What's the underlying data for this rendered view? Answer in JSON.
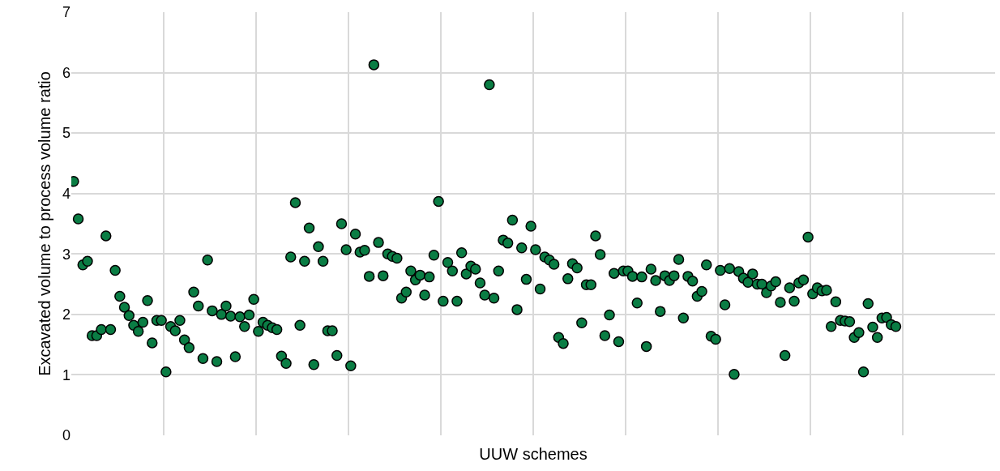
{
  "chart_data": {
    "type": "scatter",
    "xlabel": "UUW schemes",
    "ylabel": "Excavated volume to process volume ratio",
    "categories": [
      null,
      null,
      null,
      null,
      null,
      null,
      null,
      null,
      null,
      null,
      null,
      null,
      null,
      null,
      null,
      null,
      null,
      null,
      null,
      null,
      null,
      null,
      null,
      null,
      null,
      null,
      null,
      null,
      null,
      null,
      null,
      null,
      null,
      null,
      null,
      null,
      null,
      null,
      null,
      null,
      null,
      null,
      null,
      null,
      null,
      null,
      null,
      null,
      null,
      null,
      null,
      null,
      null,
      null,
      null,
      null,
      null,
      null,
      null,
      null,
      null,
      null,
      null,
      null,
      null,
      null,
      null,
      null,
      null,
      null,
      null,
      null,
      null,
      null,
      null,
      null,
      null,
      null,
      null,
      null,
      null,
      null,
      null,
      null,
      null,
      null,
      null,
      null,
      null,
      null,
      null,
      null,
      null,
      null,
      null,
      null,
      null,
      null,
      null,
      null,
      null,
      null,
      null,
      null,
      null,
      null,
      null,
      null,
      null,
      null,
      null,
      null,
      null,
      null,
      null,
      null,
      null,
      null,
      null,
      null,
      null,
      null,
      null,
      null,
      null,
      null,
      null,
      null,
      null,
      null,
      null,
      null,
      null,
      null,
      null,
      null,
      null,
      null,
      null,
      null,
      null,
      null,
      null,
      null,
      null,
      null,
      null,
      null,
      null,
      null,
      null,
      null,
      null,
      null,
      null,
      null,
      null,
      null,
      null,
      null,
      null,
      null,
      null,
      null,
      null,
      null,
      null,
      null,
      null,
      null,
      null,
      null,
      null,
      null,
      null,
      null,
      null,
      null,
      null,
      null,
      null,
      null,
      null,
      null,
      null,
      null,
      null,
      null,
      null,
      null,
      null,
      null,
      null,
      null,
      null,
      null,
      null,
      null,
      null,
      null
    ],
    "values": [
      4.2,
      3.58,
      2.82,
      2.88,
      1.65,
      1.65,
      1.75,
      3.3,
      1.75,
      2.73,
      2.3,
      2.12,
      1.98,
      1.82,
      1.72,
      1.87,
      2.23,
      1.53,
      1.9,
      1.9,
      1.05,
      1.8,
      1.73,
      1.9,
      1.58,
      1.45,
      2.37,
      2.14,
      1.27,
      2.9,
      2.06,
      1.22,
      2.0,
      2.14,
      1.97,
      1.3,
      1.96,
      1.8,
      1.99,
      2.25,
      1.72,
      1.87,
      1.82,
      1.78,
      1.75,
      1.31,
      1.19,
      2.95,
      3.85,
      1.82,
      2.88,
      3.43,
      1.17,
      3.12,
      2.88,
      1.73,
      1.73,
      1.32,
      3.5,
      3.07,
      1.15,
      3.33,
      3.03,
      3.06,
      2.63,
      6.13,
      3.19,
      2.64,
      3.0,
      2.96,
      2.93,
      2.27,
      2.37,
      2.72,
      2.57,
      2.65,
      2.32,
      2.62,
      2.98,
      3.87,
      2.22,
      2.86,
      2.72,
      2.22,
      3.02,
      2.67,
      2.8,
      2.75,
      2.52,
      2.32,
      5.8,
      2.27,
      2.72,
      3.23,
      3.18,
      3.56,
      2.08,
      3.1,
      2.58,
      3.46,
      3.07,
      2.42,
      2.95,
      2.9,
      2.83,
      1.62,
      1.52,
      2.59,
      2.84,
      2.77,
      1.86,
      2.49,
      2.49,
      3.3,
      2.99,
      1.65,
      1.99,
      2.68,
      1.55,
      2.72,
      2.72,
      2.63,
      2.19,
      2.62,
      1.47,
      2.75,
      2.56,
      2.05,
      2.64,
      2.56,
      2.64,
      2.91,
      1.94,
      2.63,
      2.55,
      2.3,
      2.38,
      2.82,
      1.64,
      1.59,
      2.73,
      2.16,
      2.76,
      1.01,
      2.71,
      2.6,
      2.53,
      2.67,
      2.5,
      2.5,
      2.36,
      2.47,
      2.54,
      2.2,
      1.32,
      2.44,
      2.22,
      2.52,
      2.57,
      3.28,
      2.34,
      2.44,
      2.39,
      2.4,
      1.8,
      2.21,
      1.9,
      1.89,
      1.88,
      1.62,
      1.7,
      1.05,
      2.18,
      1.79,
      1.62,
      1.94,
      1.95,
      1.83,
      1.8,
      null,
      null,
      null,
      null,
      null,
      null,
      null,
      null,
      null,
      null,
      null,
      null,
      null,
      null,
      null,
      null,
      null,
      null,
      null,
      null,
      null
    ],
    "color": "#0a7d44",
    "marker": "circle",
    "ylim": [
      0,
      7
    ],
    "yticks": [
      0,
      1,
      2,
      3,
      4,
      5,
      6,
      7
    ],
    "grid": true,
    "tick_labels": "y"
  }
}
